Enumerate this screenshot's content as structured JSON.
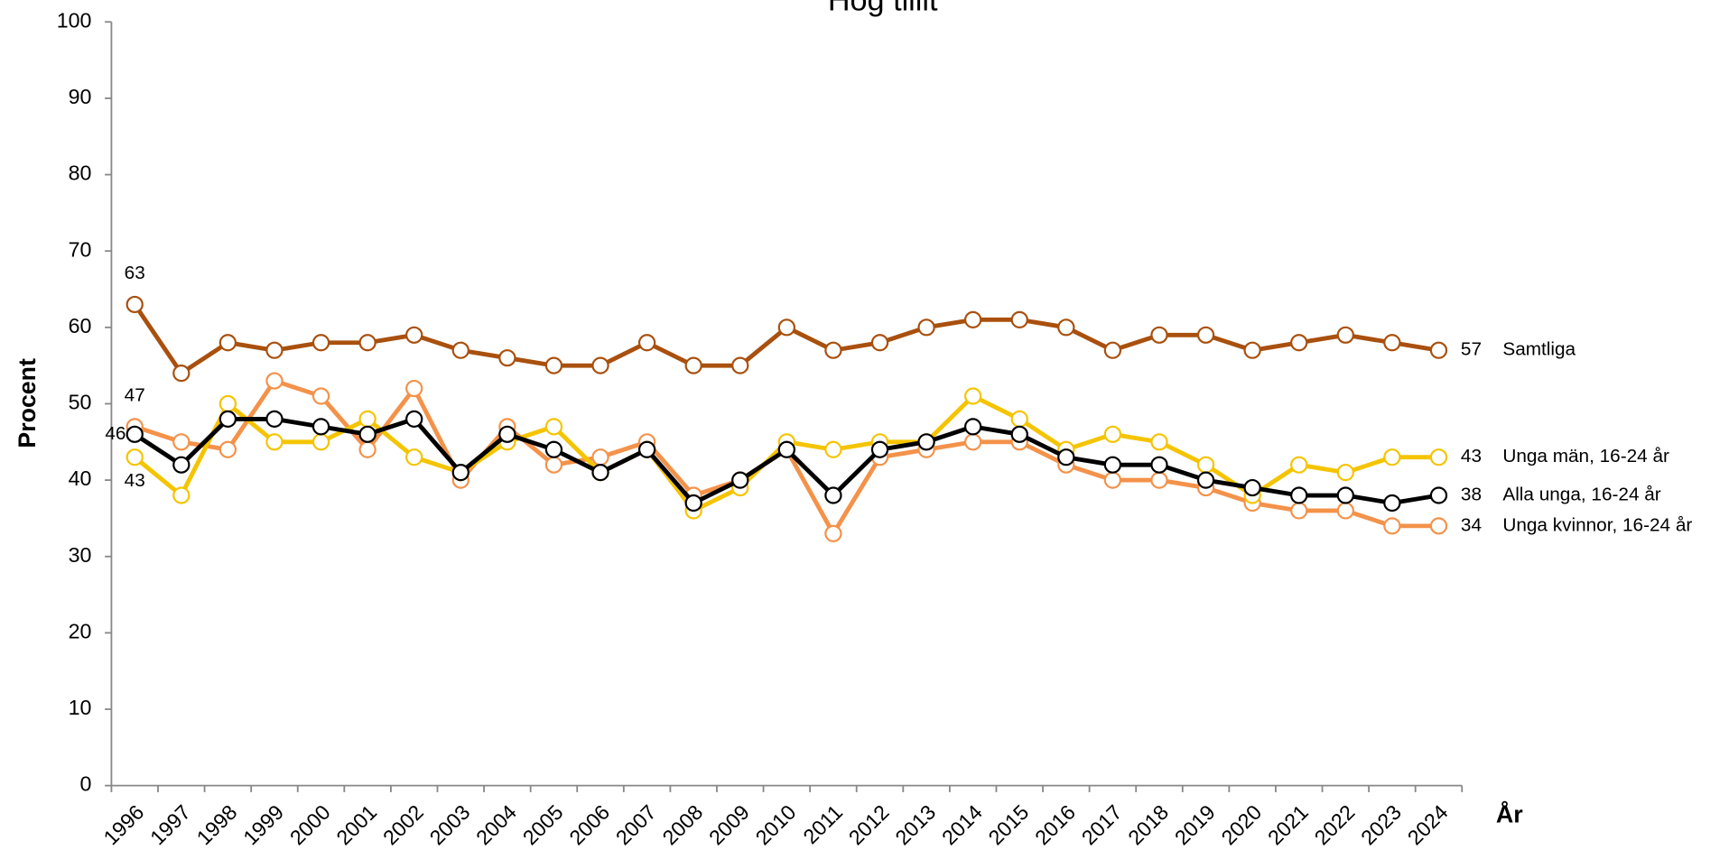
{
  "chart_data": {
    "type": "line",
    "title": "Hög tillit",
    "y_label": "Procent",
    "x_label": "År",
    "categories": [
      "1996",
      "1997",
      "1998",
      "1999",
      "2000",
      "2001",
      "2002",
      "2003",
      "2004",
      "2005",
      "2006",
      "2007",
      "2008",
      "2009",
      "2010",
      "2011",
      "2012",
      "2013",
      "2014",
      "2015",
      "2016",
      "2017",
      "2018",
      "2019",
      "2020",
      "2021",
      "2022",
      "2023",
      "2024"
    ],
    "series": [
      {
        "name": "Samtliga",
        "color": "#a9500e",
        "values": [
          63,
          54,
          58,
          57,
          58,
          58,
          59,
          57,
          56,
          55,
          55,
          58,
          55,
          55,
          60,
          57,
          58,
          60,
          61,
          61,
          60,
          57,
          59,
          59,
          57,
          58,
          59,
          58,
          57
        ]
      },
      {
        "name": "Unga män, 16-24 år",
        "color": "#f5c400",
        "values": [
          43,
          38,
          50,
          45,
          45,
          48,
          43,
          41,
          45,
          47,
          41,
          44,
          36,
          39,
          45,
          44,
          45,
          45,
          51,
          48,
          44,
          46,
          45,
          42,
          38,
          42,
          41,
          43,
          43
        ]
      },
      {
        "name": "Alla unga, 16-24 år",
        "color": "#000000",
        "values": [
          46,
          42,
          48,
          48,
          47,
          46,
          48,
          41,
          46,
          44,
          41,
          44,
          37,
          40,
          44,
          38,
          44,
          45,
          47,
          46,
          43,
          42,
          42,
          40,
          39,
          38,
          38,
          37,
          38
        ]
      },
      {
        "name": "Unga kvinnor, 16-24 år",
        "color": "#f4924a",
        "values": [
          47,
          45,
          44,
          53,
          51,
          44,
          52,
          40,
          47,
          42,
          43,
          45,
          38,
          40,
          44,
          33,
          43,
          44,
          45,
          45,
          42,
          40,
          40,
          39,
          37,
          36,
          36,
          34,
          34
        ]
      }
    ],
    "ylim": [
      0,
      100
    ],
    "yticks": [
      0,
      10,
      20,
      30,
      40,
      50,
      60,
      70,
      80,
      90,
      100
    ],
    "grid": false
  }
}
